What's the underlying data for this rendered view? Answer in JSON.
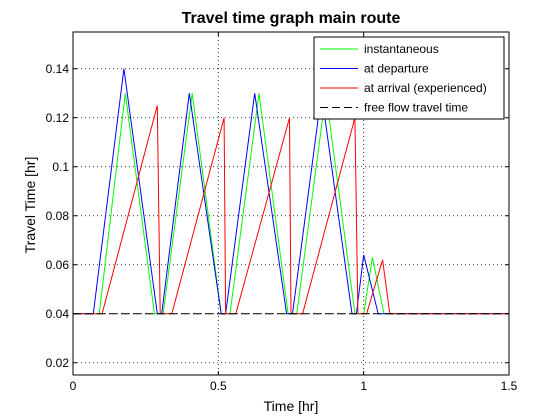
{
  "chart_data": {
    "type": "line",
    "title": "Travel time graph main route",
    "xlabel": "Time [hr]",
    "ylabel": "Travel Time [hr]",
    "xlim": [
      0,
      1.5
    ],
    "ylim": [
      0.015,
      0.155
    ],
    "xticks": [
      0,
      0.5,
      1,
      1.5
    ],
    "xtick_labels": [
      "0",
      "0.5",
      "1",
      "1.5"
    ],
    "yticks": [
      0.02,
      0.04,
      0.06,
      0.08,
      0.1,
      0.12,
      0.14
    ],
    "ytick_labels": [
      "0.02",
      "0.04",
      "0.06",
      "0.08",
      "0.1",
      "0.12",
      "0.14"
    ],
    "grid": true,
    "grid_style": "dotted",
    "legend_position": "top-right",
    "series": [
      {
        "name": "instantaneous",
        "color": "#00ff00",
        "style": "solid",
        "x": [
          0,
          0.09,
          0.18,
          0.28,
          0.31,
          0.41,
          0.51,
          0.54,
          0.64,
          0.74,
          0.77,
          0.87,
          0.97,
          1.0,
          1.03,
          1.07,
          1.5
        ],
        "y": [
          0.04,
          0.04,
          0.13,
          0.04,
          0.04,
          0.13,
          0.04,
          0.04,
          0.13,
          0.04,
          0.04,
          0.13,
          0.04,
          0.04,
          0.063,
          0.04,
          0.04
        ]
      },
      {
        "name": "at departure",
        "color": "#0000ff",
        "style": "solid",
        "x": [
          0,
          0.07,
          0.175,
          0.29,
          0.305,
          0.4,
          0.51,
          0.525,
          0.625,
          0.735,
          0.755,
          0.855,
          0.96,
          0.975,
          1.0,
          1.05,
          1.5
        ],
        "y": [
          0.04,
          0.04,
          0.14,
          0.04,
          0.04,
          0.13,
          0.04,
          0.04,
          0.13,
          0.04,
          0.04,
          0.13,
          0.04,
          0.04,
          0.064,
          0.04,
          0.04
        ]
      },
      {
        "name": "at arrival (experienced)",
        "color": "#ff0000",
        "style": "solid",
        "x": [
          0,
          0.1,
          0.29,
          0.3,
          0.34,
          0.52,
          0.525,
          0.56,
          0.745,
          0.75,
          0.79,
          0.97,
          0.98,
          1.01,
          1.065,
          1.09,
          1.5
        ],
        "y": [
          0.04,
          0.04,
          0.125,
          0.04,
          0.04,
          0.12,
          0.04,
          0.04,
          0.12,
          0.04,
          0.04,
          0.12,
          0.04,
          0.04,
          0.062,
          0.04,
          0.04
        ]
      },
      {
        "name": "free flow travel time",
        "color": "#000000",
        "style": "dashed",
        "x": [
          0,
          1.5
        ],
        "y": [
          0.04,
          0.04
        ]
      }
    ]
  }
}
